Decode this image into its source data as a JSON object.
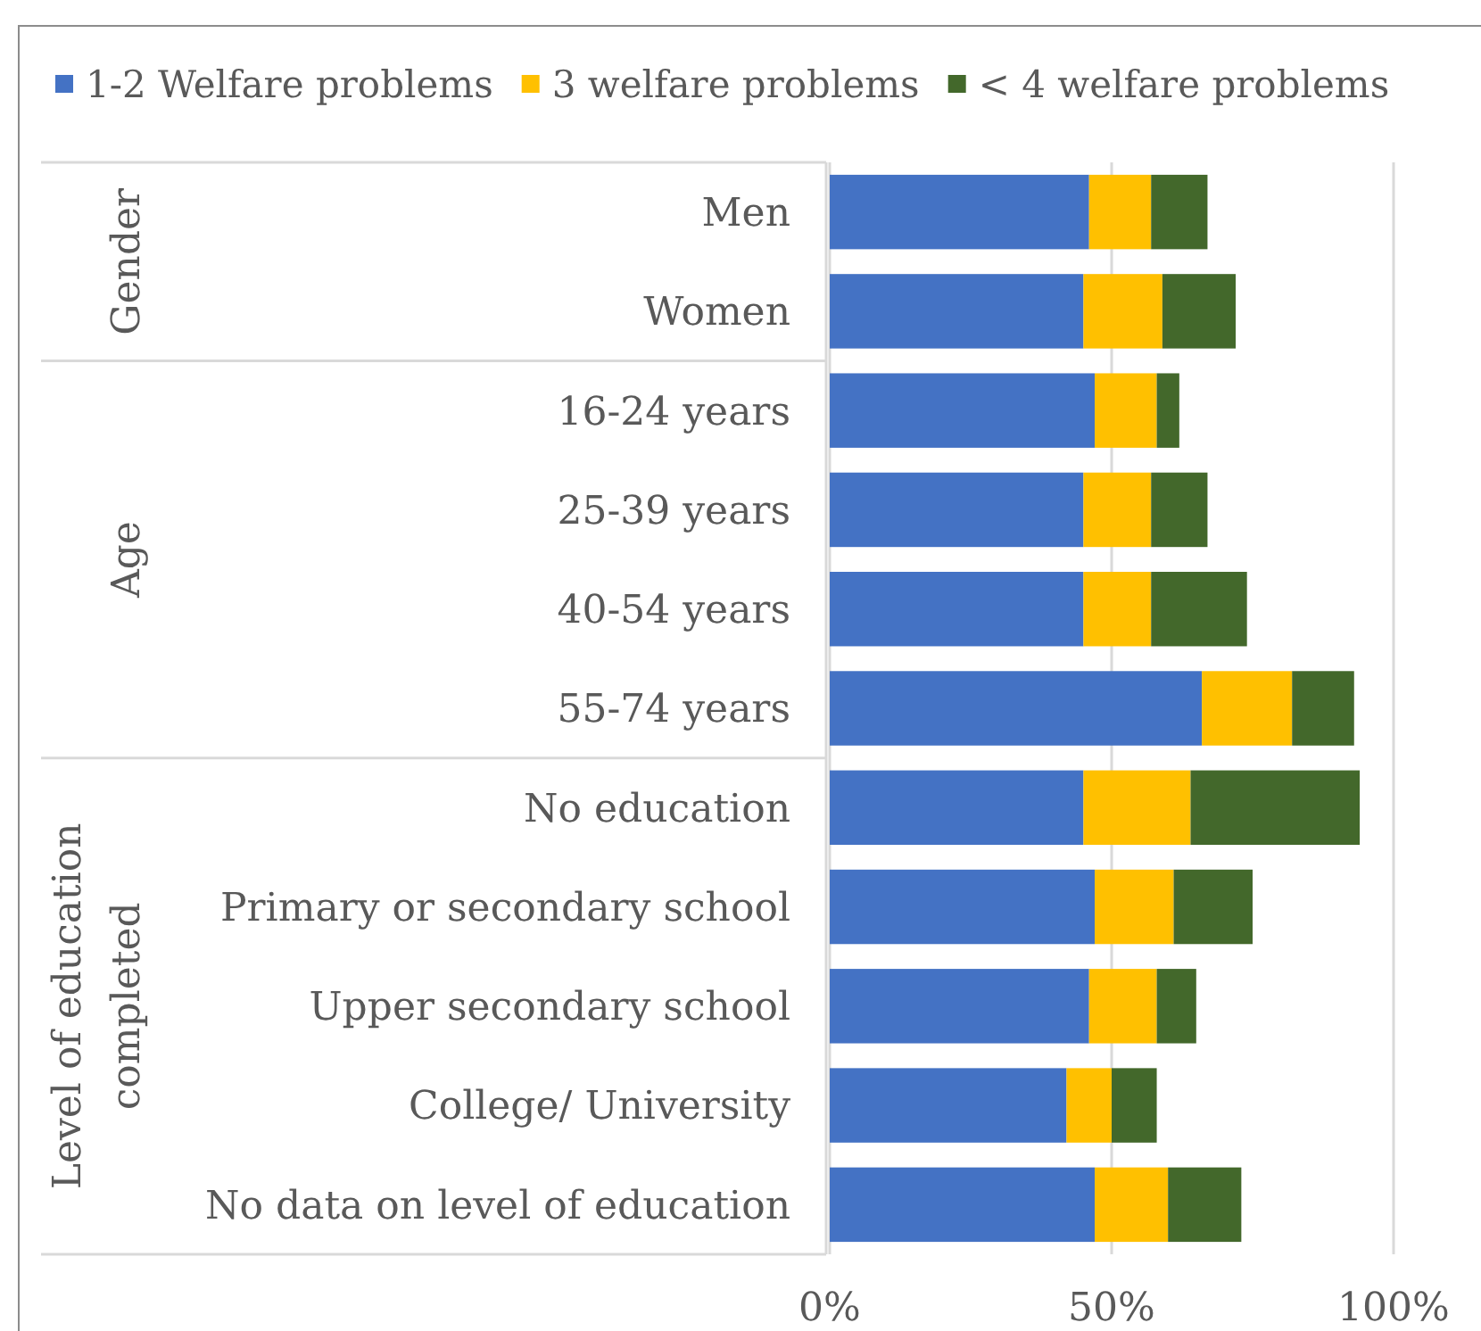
{
  "chart_data": {
    "type": "bar",
    "orientation": "horizontal",
    "stacked": true,
    "categories": [
      "Men",
      "Women",
      "16-24 years",
      "25-39 years",
      "40-54 years",
      "55-74 years",
      "No education",
      "Primary or secondary school",
      "Upper secondary school",
      "College/ University",
      "No data on level of education"
    ],
    "series": [
      {
        "name": "1-2 Welfare problems",
        "color": "#4472c4",
        "values": [
          46,
          45,
          47,
          45,
          45,
          66,
          45,
          47,
          46,
          42,
          47
        ]
      },
      {
        "name": "3 welfare problems",
        "color": "#ffc000",
        "values": [
          11,
          14,
          11,
          12,
          12,
          16,
          19,
          14,
          12,
          8,
          13
        ]
      },
      {
        "name": "< 4 welfare problems",
        "color": "#43682b",
        "values": [
          10,
          13,
          4,
          10,
          17,
          11,
          30,
          14,
          7,
          8,
          13
        ]
      }
    ],
    "xlim": [
      0,
      100
    ],
    "xticks": [
      {
        "value": 0,
        "label": "0%"
      },
      {
        "value": 50,
        "label": "50%"
      },
      {
        "value": 100,
        "label": "100%"
      }
    ],
    "grid": "x",
    "legend": "top",
    "annotations": [
      "Gender",
      "Age",
      "Level of education completed"
    ]
  }
}
